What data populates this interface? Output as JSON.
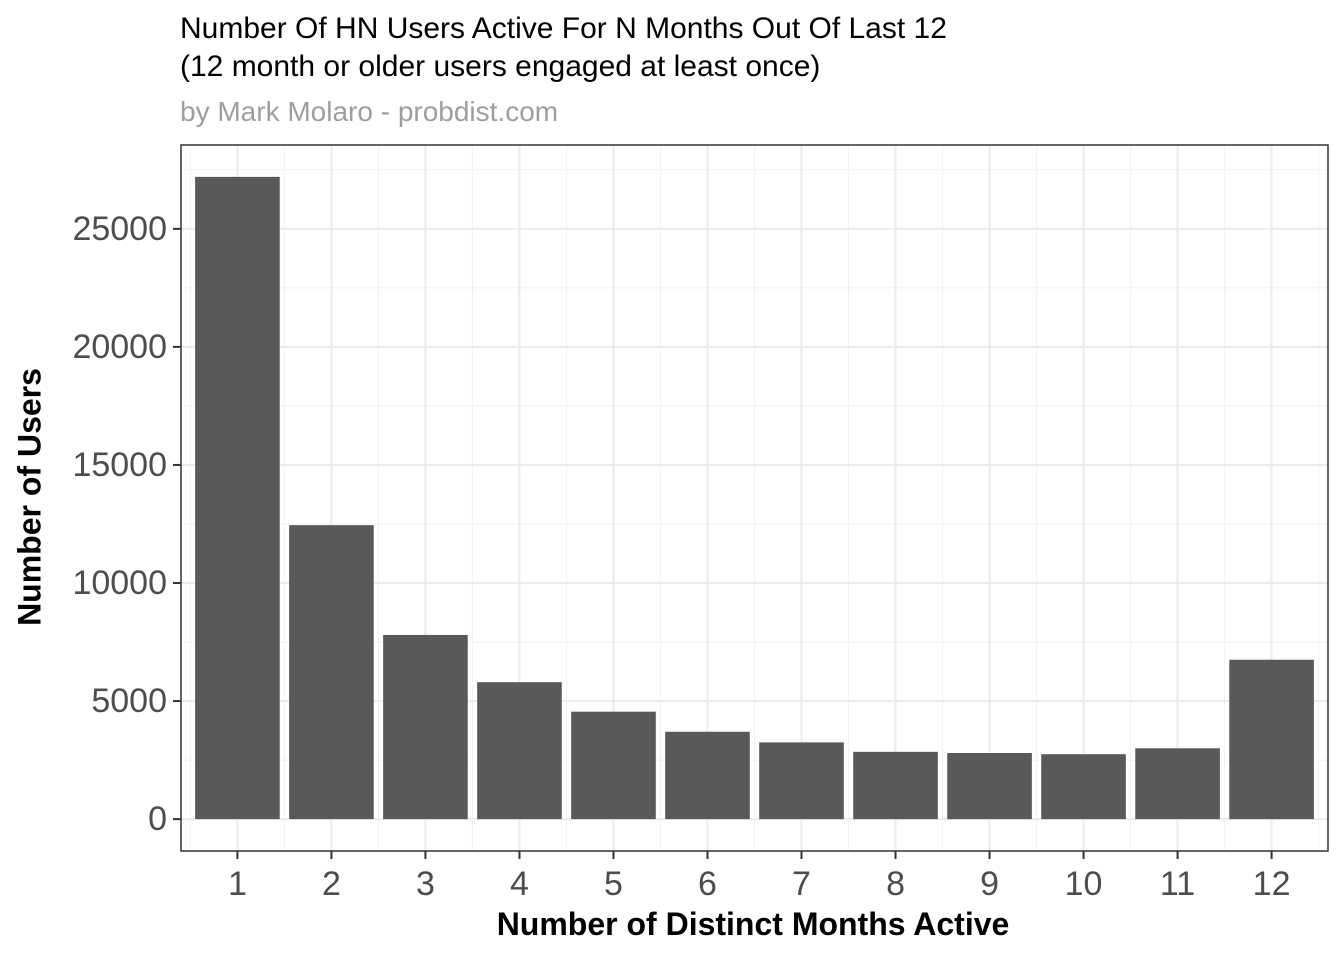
{
  "chart_data": {
    "type": "bar",
    "title": "Number Of HN Users Active For N Months Out Of Last 12\n(12 month or older users engaged at least once)",
    "subtitle": "by Mark Molaro - probdist.com",
    "xlabel": "Number of Distinct Months Active",
    "ylabel": "Number of Users",
    "categories": [
      "1",
      "2",
      "3",
      "4",
      "5",
      "6",
      "7",
      "8",
      "9",
      "10",
      "11",
      "12"
    ],
    "values": [
      27200,
      12450,
      7800,
      5800,
      4550,
      3700,
      3250,
      2850,
      2800,
      2750,
      3000,
      6750
    ],
    "ylim": [
      -1350,
      28550
    ],
    "yticks": [
      0,
      5000,
      10000,
      15000,
      20000,
      25000
    ],
    "grid": true,
    "bar_color": "#595959"
  }
}
